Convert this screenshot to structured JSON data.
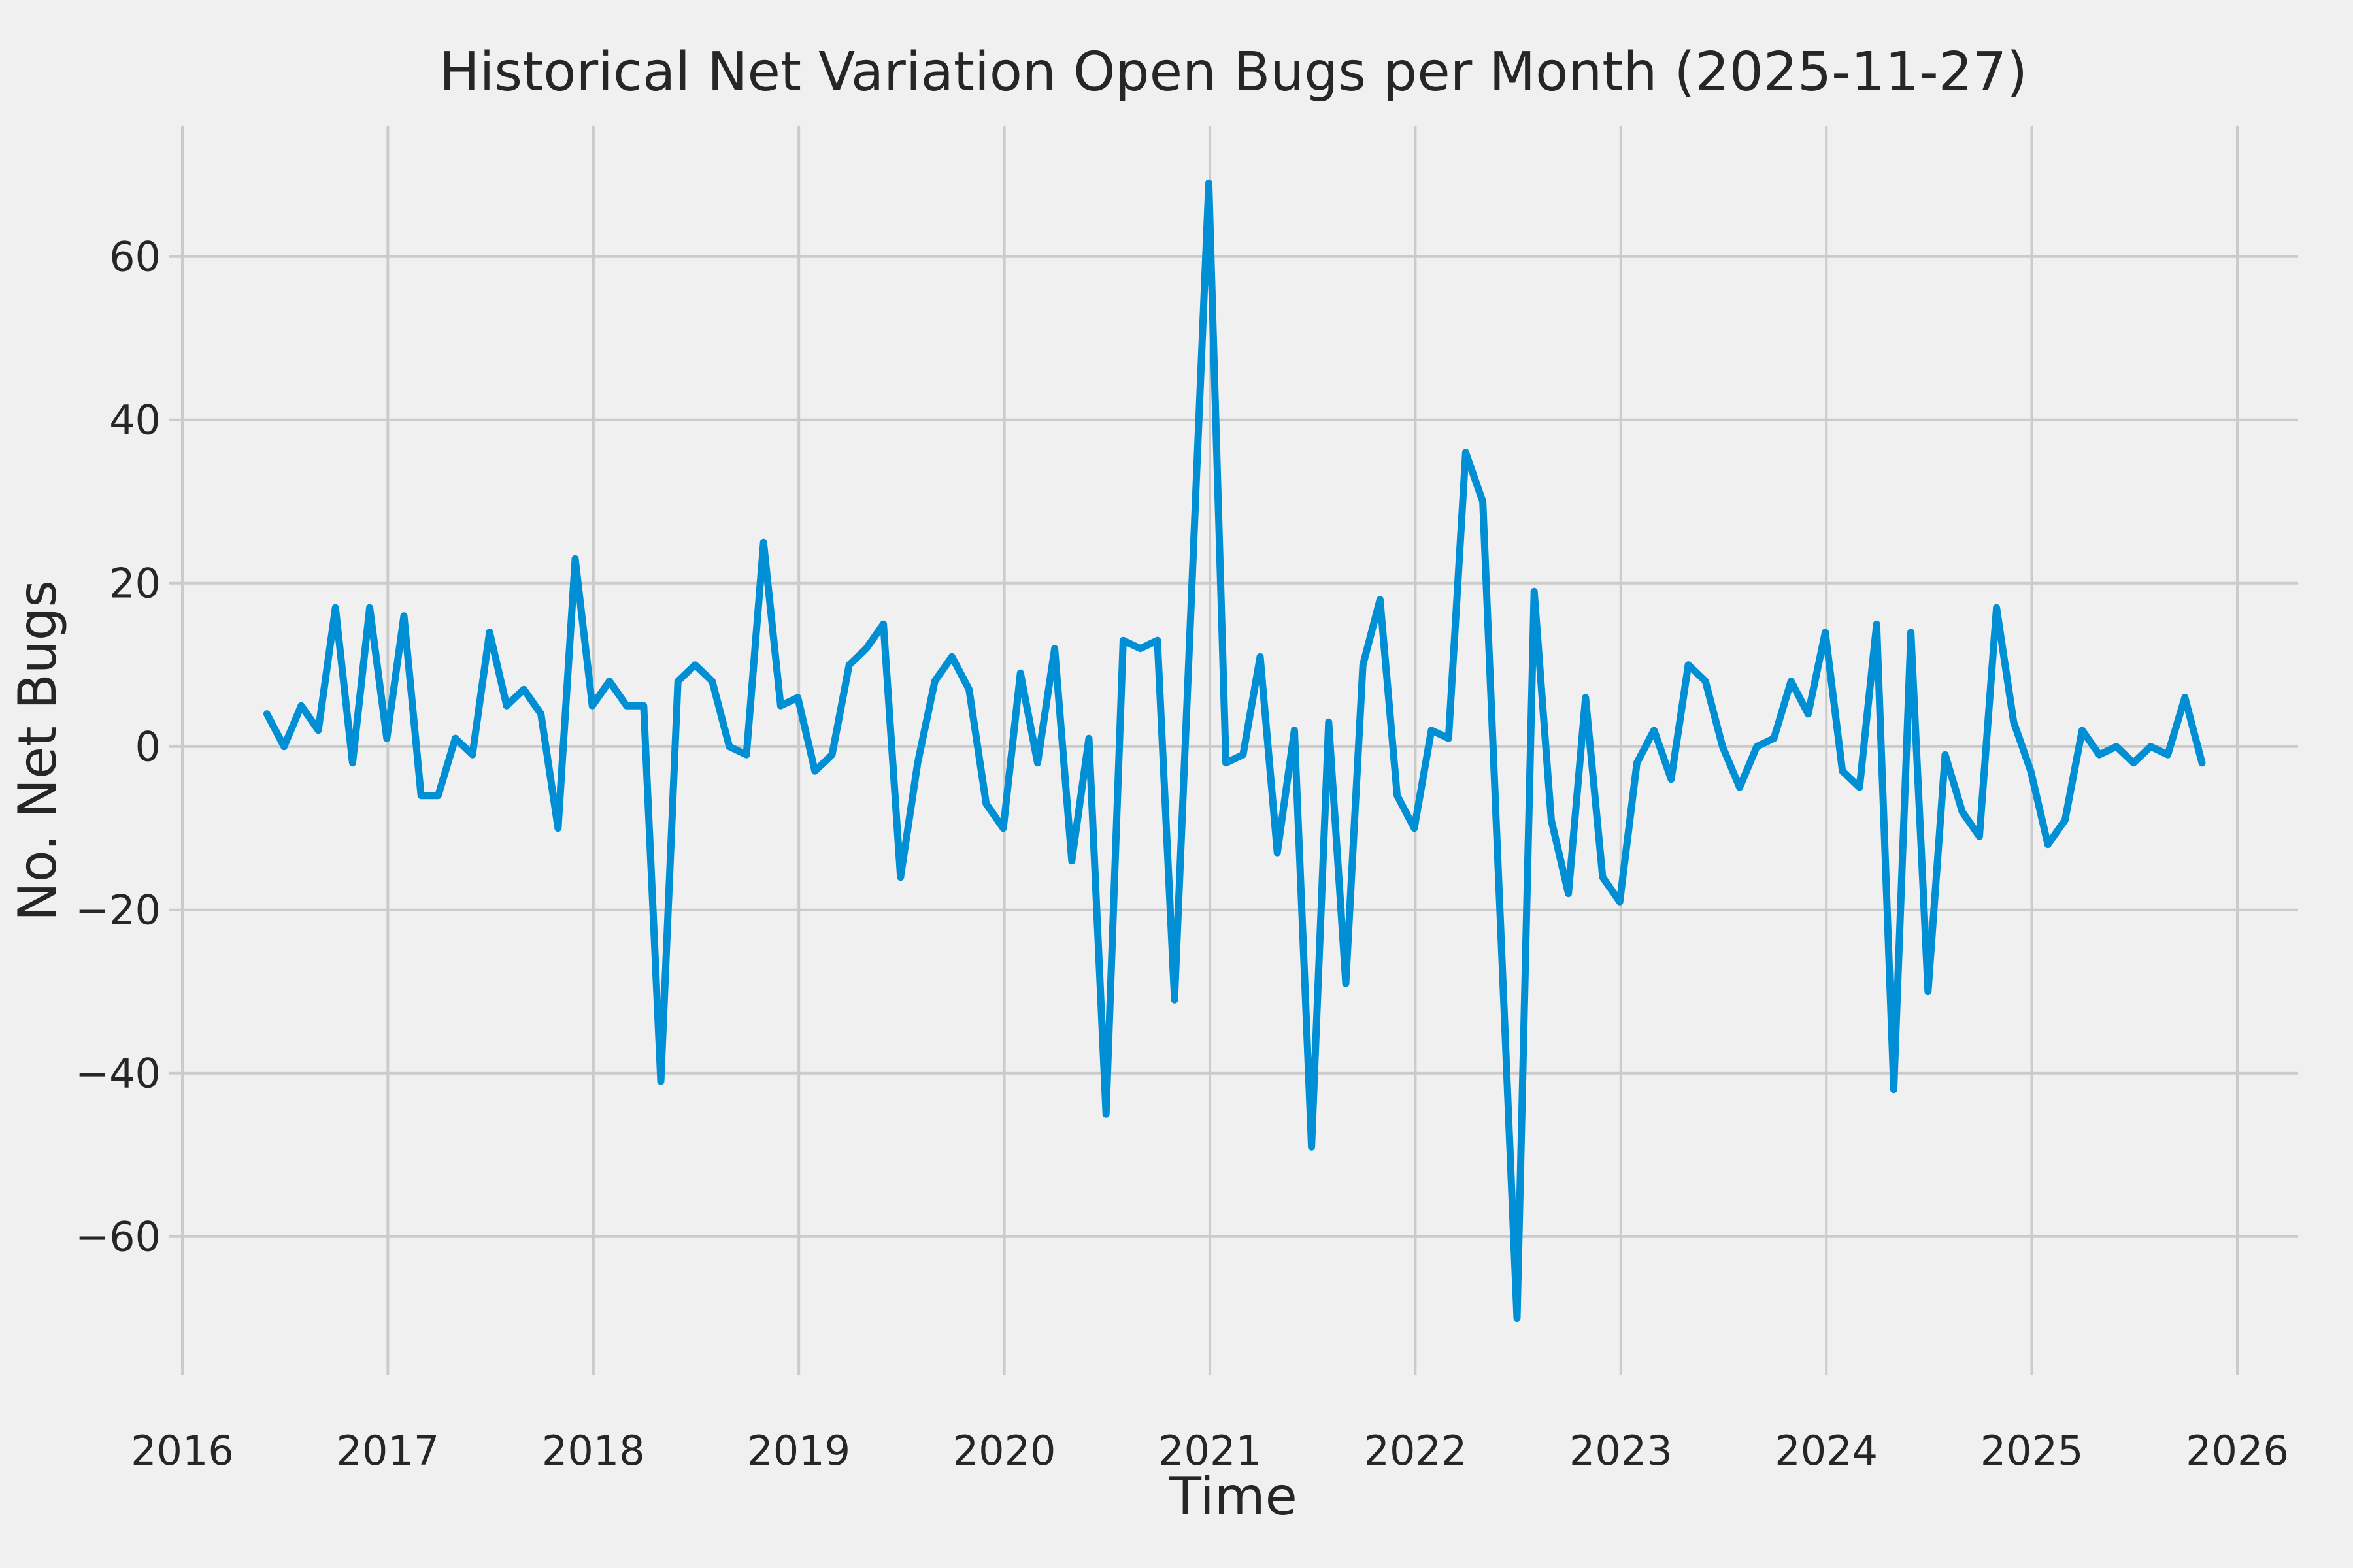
{
  "figure": {
    "background": "#F0F0F0",
    "grid_color": "#CBCBCB",
    "text_color": "#262626"
  },
  "chart_data": {
    "type": "line",
    "title": "Historical Net Variation Open Bugs per Month (2025-11-27)",
    "xlabel": "Time",
    "ylabel": "No. Net Bugs",
    "x_start": "2016-06",
    "x_end": "2025-11",
    "x_freq": "monthly",
    "values": [
      4,
      0,
      5,
      2,
      17,
      -2,
      17,
      1,
      16,
      -6,
      -6,
      1,
      -1,
      14,
      5,
      7,
      4,
      -10,
      23,
      5,
      8,
      5,
      5,
      -41,
      8,
      10,
      8,
      0,
      -1,
      25,
      5,
      6,
      -3,
      -1,
      10,
      12,
      15,
      -16,
      -2,
      8,
      11,
      7,
      -7,
      -10,
      9,
      -2,
      12,
      -14,
      1,
      -45,
      13,
      12,
      13,
      -31,
      19,
      69,
      -2,
      -1,
      11,
      -13,
      2,
      -49,
      3,
      -29,
      10,
      18,
      -6,
      -10,
      2,
      1,
      36,
      30,
      -20,
      -70,
      19,
      -9,
      -18,
      6,
      -16,
      -19,
      -2,
      2,
      -4,
      10,
      8,
      0,
      -5,
      0,
      1,
      8,
      4,
      14,
      -3,
      -5,
      15,
      -42,
      14,
      -30,
      -1,
      -8,
      -11,
      17,
      3,
      -3,
      -12,
      -9,
      2,
      -1,
      0,
      -2,
      0,
      -1,
      6,
      -2
    ],
    "series_color": "#008FD5",
    "line_width": 11,
    "xticks": [
      2016,
      2017,
      2018,
      2019,
      2020,
      2021,
      2022,
      2023,
      2024,
      2025,
      2026
    ],
    "yticks": [
      60,
      40,
      20,
      0,
      -20,
      -40,
      -60
    ],
    "ylim": [
      -77,
      76
    ],
    "grid": true,
    "legend": false
  }
}
